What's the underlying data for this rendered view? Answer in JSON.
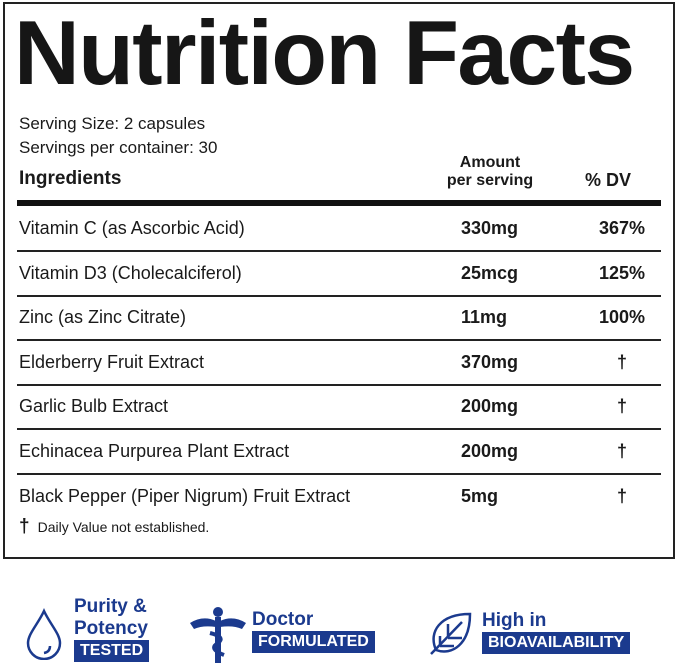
{
  "title": "Nutrition Facts",
  "serving_size": "Serving Size: 2 capsules",
  "servings_per_container": "Servings per container: 30",
  "headers": {
    "ingredients": "Ingredients",
    "amount_line1": "Amount",
    "amount_line2": "per serving",
    "dv": "% DV"
  },
  "rows": [
    {
      "name": "Vitamin C (as Ascorbic Acid)",
      "amount": "330mg",
      "dv": "367%"
    },
    {
      "name": "Vitamin D3 (Cholecalciferol)",
      "amount": "25mcg",
      "dv": "125%"
    },
    {
      "name": "Zinc (as Zinc Citrate)",
      "amount": "11mg",
      "dv": "100%"
    },
    {
      "name": "Elderberry Fruit Extract",
      "amount": "370mg",
      "dv": "†"
    },
    {
      "name": "Garlic Bulb Extract",
      "amount": "200mg",
      "dv": "†"
    },
    {
      "name": "Echinacea Purpurea Plant Extract",
      "amount": "200mg",
      "dv": "†"
    },
    {
      "name": "Black Pepper (Piper Nigrum) Fruit Extract",
      "amount": "5mg",
      "dv": "†"
    }
  ],
  "footnote": {
    "symbol": "†",
    "text": "Daily Value not established."
  },
  "badges": [
    {
      "icon": "droplet-icon",
      "line1": "Purity &",
      "line2": "Potency",
      "boxed": "TESTED"
    },
    {
      "icon": "caduceus-icon",
      "line1": "Doctor",
      "boxed": "FORMULATED"
    },
    {
      "icon": "leaf-icon",
      "line1": "High in",
      "boxed": "BIOAVAILABILITY"
    }
  ],
  "colors": {
    "brand_blue": "#1b3a8e",
    "text": "#1a1a1a"
  }
}
